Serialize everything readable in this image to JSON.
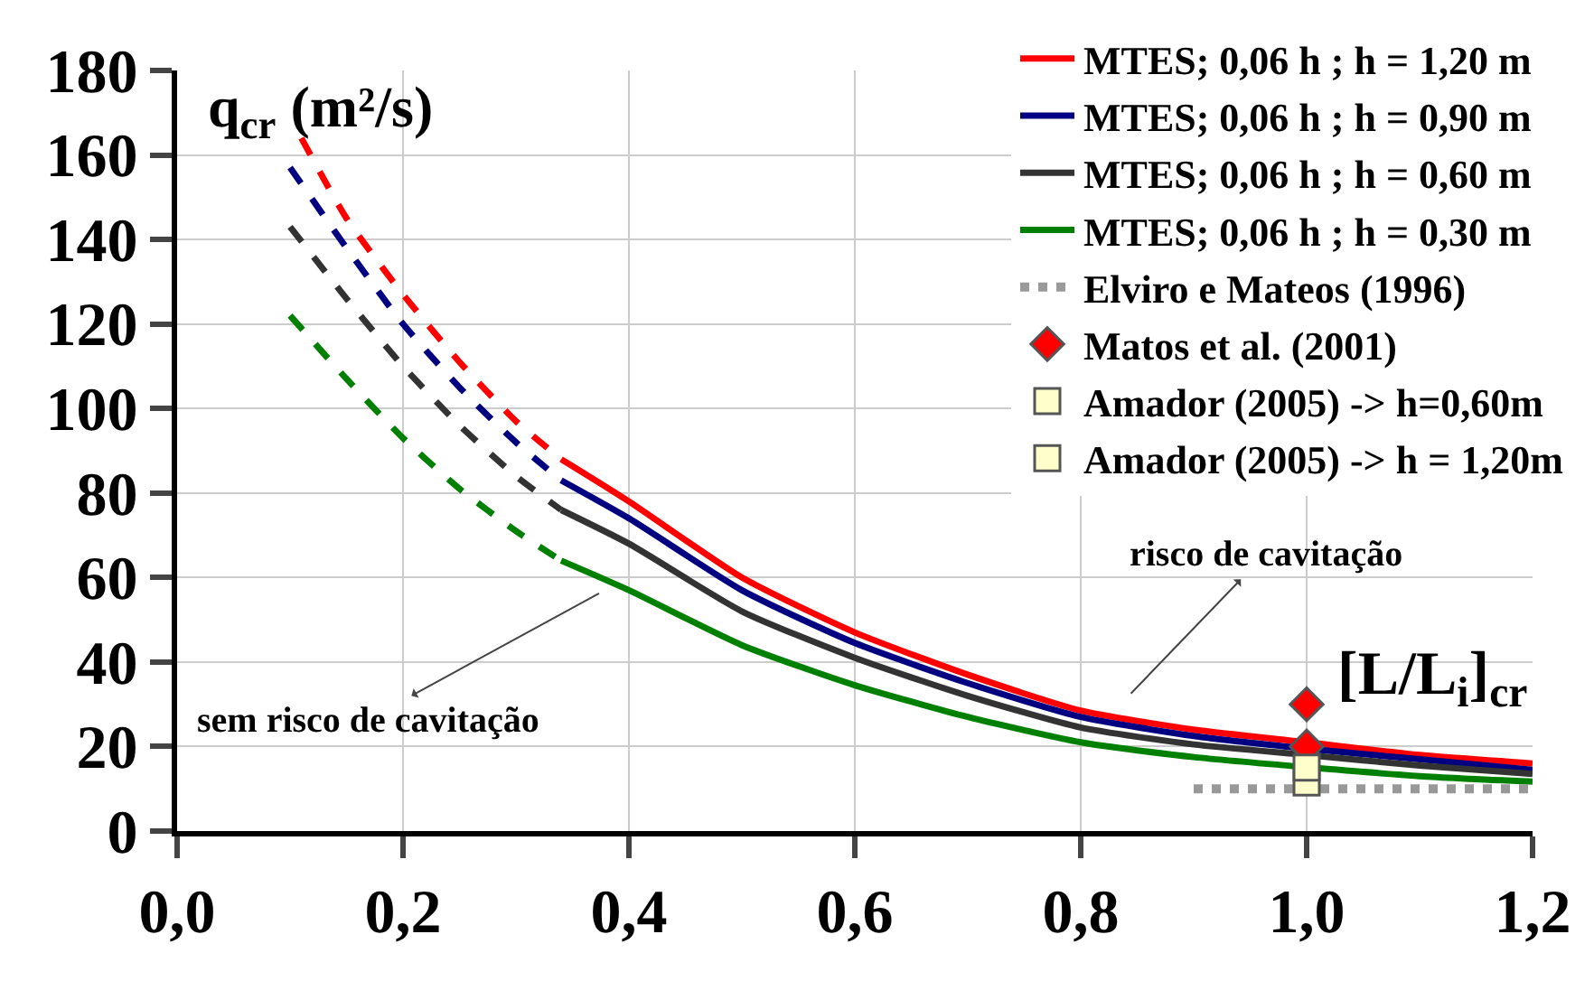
{
  "chart_data": {
    "type": "line",
    "xlabel": "[L/L$_{i}$]$_{cr}$",
    "ylabel": "q$_{cr}$ (m²/s)",
    "xlim": [
      0,
      1.2
    ],
    "ylim": [
      0,
      180
    ],
    "xticks": [
      {
        "value": 0,
        "label": "0,0"
      },
      {
        "value": 0.2,
        "label": "0,2"
      },
      {
        "value": 0.4,
        "label": "0,4"
      },
      {
        "value": 0.6,
        "label": "0,6"
      },
      {
        "value": 0.8,
        "label": "0,8"
      },
      {
        "value": 1,
        "label": "1,0"
      },
      {
        "value": 1.2,
        "label": "1,2"
      }
    ],
    "yticks": [
      0,
      20,
      40,
      60,
      80,
      100,
      120,
      140,
      160,
      180
    ],
    "grid": true,
    "legend": "top right",
    "series": [
      {
        "name": "MTES; 0,06 h ; h = 1,20 m",
        "type": "line",
        "color": "#ff0000",
        "line_style": "solid",
        "marker": "none",
        "x": [
          0.34,
          0.4,
          0.5,
          0.6,
          0.7,
          0.8,
          0.9,
          1.0,
          1.1,
          1.2
        ],
        "values": [
          88,
          78,
          60,
          47,
          37,
          28.5,
          24,
          21,
          18,
          16
        ]
      },
      {
        "name": "MTES; 0,06 h ; h = 0,90 m",
        "type": "line",
        "color": "#000080",
        "line_style": "solid",
        "marker": "none",
        "x": [
          0.34,
          0.4,
          0.5,
          0.6,
          0.7,
          0.8,
          0.9,
          1.0,
          1.1,
          1.2
        ],
        "values": [
          83,
          74,
          57,
          44.5,
          35,
          27,
          22.5,
          19.5,
          17,
          14.5
        ]
      },
      {
        "name": "MTES; 0,06 h ; h = 0,60 m",
        "type": "line",
        "color": "#333333",
        "line_style": "solid",
        "marker": "none",
        "x": [
          0.34,
          0.4,
          0.5,
          0.6,
          0.7,
          0.8,
          0.9,
          1.0,
          1.1,
          1.2
        ],
        "values": [
          76,
          68,
          52,
          41,
          32,
          24.5,
          20.5,
          18,
          15.5,
          13.5
        ]
      },
      {
        "name": "MTES; 0,06 h ; h = 0,30 m",
        "type": "line",
        "color": "#008000",
        "line_style": "solid",
        "marker": "none",
        "x": [
          0.34,
          0.4,
          0.5,
          0.6,
          0.7,
          0.8,
          0.9,
          1.1,
          1.2
        ],
        "values": [
          64,
          57,
          44,
          34.5,
          27,
          21,
          17.5,
          13,
          11.7
        ]
      },
      {
        "name": "Elviro e Mateos (1996)",
        "type": "line",
        "color": "#999999",
        "line_style": "dotted",
        "marker": "none",
        "x": [
          0.9,
          1.2
        ],
        "values": [
          10,
          10
        ]
      },
      {
        "name": "Matos et al. (2001)",
        "type": "scatter",
        "color": "#ff0000",
        "marker": "diamond",
        "x": [
          1.0,
          1.0
        ],
        "values": [
          30,
          20
        ]
      },
      {
        "name": "Amador (2005) -> h=0,60m",
        "type": "scatter",
        "color": "#ffffcc",
        "marker": "square",
        "x": [
          1.0
        ],
        "values": [
          11.5
        ]
      },
      {
        "name": "Amador (2005) -> h = 1,20m",
        "type": "scatter",
        "color": "#ffffcc",
        "marker": "square",
        "x": [
          1.0
        ],
        "values": [
          15
        ]
      },
      {
        "type": "line",
        "color": "#ff0000",
        "line_style": "dashed",
        "marker": "none",
        "x": [
          0.11,
          0.15,
          0.2,
          0.25,
          0.3,
          0.34
        ],
        "values": [
          164,
          145,
          127,
          111,
          97,
          88
        ]
      },
      {
        "type": "line",
        "color": "#000080",
        "line_style": "dashed",
        "marker": "none",
        "x": [
          0.1,
          0.15,
          0.2,
          0.25,
          0.3,
          0.34
        ],
        "values": [
          157,
          138,
          120,
          105,
          92,
          83
        ]
      },
      {
        "type": "line",
        "color": "#333333",
        "line_style": "dashed",
        "marker": "none",
        "x": [
          0.1,
          0.15,
          0.2,
          0.25,
          0.3,
          0.34
        ],
        "values": [
          143,
          126,
          110,
          96,
          84,
          76
        ]
      },
      {
        "type": "line",
        "color": "#008000",
        "line_style": "dashed",
        "marker": "none",
        "x": [
          0.1,
          0.15,
          0.2,
          0.25,
          0.3,
          0.34
        ],
        "values": [
          122,
          107,
          93,
          81,
          71,
          64
        ]
      }
    ],
    "annotations": [
      "risco de cavitação",
      "sem risco de cavitação"
    ]
  }
}
